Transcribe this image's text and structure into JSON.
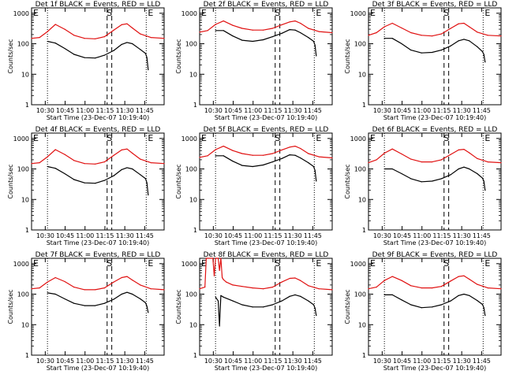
{
  "colors": {
    "events": "#000000",
    "lld": "#e01010",
    "background": "#ffffff"
  },
  "shared": {
    "xlabel": "Start Time (23-Dec-07 10:19:40)",
    "ylabel": "Counts/sec",
    "xtick_labels": [
      "10:30",
      "10:45",
      "11:00",
      "11:15",
      "11:30",
      "11:45"
    ],
    "xtick_minutes": [
      10.33,
      25.33,
      40.33,
      55.33,
      70.33,
      85.33
    ],
    "ytick_labels": [
      "1",
      "10",
      "100",
      "1000"
    ],
    "ytick_values": [
      1,
      10,
      100,
      1000
    ],
    "markers": {
      "start": "E",
      "s": "S",
      "end": "E"
    }
  },
  "chart_data": [
    {
      "type": "line",
      "title": "Det 1f BLACK = Events, RED = LLD",
      "xlabel": "Start Time (23-Dec-07 10:19:40)",
      "ylabel": "Counts/sec",
      "xlim": [
        0,
        100
      ],
      "ylim": [
        1,
        1500
      ],
      "yscale": "log",
      "grid": false,
      "dotted_lines_min": [
        12.0,
        86.5
      ],
      "dashed_lines_min": [
        57.0,
        60.5
      ],
      "series": [
        {
          "name": "Events",
          "x": [
            12,
            18,
            25,
            32,
            40,
            48,
            55,
            62,
            68,
            72,
            76,
            82,
            86,
            87,
            88
          ],
          "y": [
            120,
            105,
            70,
            45,
            35,
            34,
            42,
            60,
            95,
            110,
            100,
            65,
            48,
            35,
            14
          ]
        },
        {
          "name": "LLD",
          "x": [
            0,
            6,
            12,
            18,
            25,
            32,
            40,
            48,
            55,
            62,
            68,
            72,
            76,
            82,
            90,
            100
          ],
          "y": [
            150,
            160,
            250,
            430,
            300,
            190,
            150,
            145,
            170,
            280,
            420,
            450,
            330,
            210,
            160,
            150
          ]
        }
      ]
    },
    {
      "type": "line",
      "title": "Det 2f BLACK = Events, RED = LLD",
      "xlabel": "Start Time (23-Dec-07 10:19:40)",
      "ylabel": "Counts/sec",
      "xlim": [
        0,
        100
      ],
      "ylim": [
        1,
        1500
      ],
      "yscale": "log",
      "grid": false,
      "dotted_lines_min": [
        12.0,
        86.5
      ],
      "dashed_lines_min": [
        57.0,
        60.5
      ],
      "series": [
        {
          "name": "Events",
          "x": [
            12,
            18,
            25,
            32,
            40,
            48,
            55,
            62,
            68,
            72,
            76,
            82,
            86,
            87,
            88
          ],
          "y": [
            270,
            270,
            180,
            130,
            120,
            135,
            170,
            220,
            290,
            280,
            230,
            160,
            120,
            90,
            40
          ]
        },
        {
          "name": "LLD",
          "x": [
            0,
            6,
            12,
            18,
            25,
            32,
            40,
            48,
            55,
            62,
            68,
            72,
            76,
            82,
            90,
            100
          ],
          "y": [
            240,
            270,
            430,
            560,
            400,
            320,
            280,
            280,
            320,
            420,
            520,
            560,
            470,
            320,
            250,
            230
          ]
        }
      ]
    },
    {
      "type": "line",
      "title": "Det 3f BLACK = Events, RED = LLD",
      "xlabel": "Start Time (23-Dec-07 10:19:40)",
      "ylabel": "Counts/sec",
      "xlim": [
        0,
        100
      ],
      "ylim": [
        1,
        1500
      ],
      "yscale": "log",
      "grid": false,
      "dotted_lines_min": [
        12.0,
        86.5
      ],
      "dashed_lines_min": [
        57.0,
        60.5
      ],
      "series": [
        {
          "name": "Events",
          "x": [
            12,
            18,
            25,
            32,
            40,
            48,
            55,
            62,
            68,
            72,
            76,
            82,
            86,
            87,
            88
          ],
          "y": [
            150,
            150,
            100,
            62,
            50,
            52,
            62,
            85,
            125,
            140,
            125,
            80,
            55,
            45,
            25
          ]
        },
        {
          "name": "LLD",
          "x": [
            0,
            6,
            12,
            18,
            25,
            32,
            40,
            48,
            55,
            62,
            68,
            72,
            76,
            82,
            90,
            100
          ],
          "y": [
            190,
            230,
            360,
            470,
            330,
            230,
            190,
            180,
            210,
            320,
            450,
            470,
            360,
            240,
            190,
            180
          ]
        }
      ]
    },
    {
      "type": "line",
      "title": "Det 4f BLACK = Events, RED = LLD",
      "xlabel": "Start Time (23-Dec-07 10:19:40)",
      "ylabel": "Counts/sec",
      "xlim": [
        0,
        100
      ],
      "ylim": [
        1,
        1500
      ],
      "yscale": "log",
      "grid": false,
      "dotted_lines_min": [
        12.0,
        86.5
      ],
      "dashed_lines_min": [
        57.0,
        60.5
      ],
      "series": [
        {
          "name": "Events",
          "x": [
            12,
            18,
            25,
            32,
            40,
            48,
            55,
            62,
            68,
            72,
            76,
            82,
            86,
            87,
            88
          ],
          "y": [
            120,
            105,
            70,
            45,
            35,
            34,
            42,
            60,
            95,
            110,
            100,
            65,
            48,
            35,
            14
          ]
        },
        {
          "name": "LLD",
          "x": [
            0,
            6,
            12,
            18,
            25,
            32,
            40,
            48,
            55,
            62,
            68,
            72,
            76,
            82,
            90,
            100
          ],
          "y": [
            150,
            160,
            250,
            430,
            300,
            190,
            150,
            145,
            170,
            280,
            420,
            450,
            330,
            210,
            160,
            150
          ]
        }
      ]
    },
    {
      "type": "line",
      "title": "Det 5f BLACK = Events, RED = LLD",
      "xlabel": "Start Time (23-Dec-07 10:19:40)",
      "ylabel": "Counts/sec",
      "xlim": [
        0,
        100
      ],
      "ylim": [
        1,
        1500
      ],
      "yscale": "log",
      "grid": false,
      "dotted_lines_min": [
        12.0,
        86.5
      ],
      "dashed_lines_min": [
        57.0,
        60.5
      ],
      "series": [
        {
          "name": "Events",
          "x": [
            12,
            18,
            25,
            32,
            40,
            48,
            55,
            62,
            68,
            72,
            76,
            82,
            86,
            87,
            88
          ],
          "y": [
            270,
            270,
            180,
            130,
            120,
            135,
            170,
            220,
            290,
            280,
            230,
            160,
            120,
            90,
            40
          ]
        },
        {
          "name": "LLD",
          "x": [
            0,
            6,
            12,
            18,
            25,
            32,
            40,
            48,
            55,
            62,
            68,
            72,
            76,
            82,
            90,
            100
          ],
          "y": [
            240,
            270,
            430,
            560,
            400,
            320,
            280,
            280,
            320,
            420,
            520,
            560,
            470,
            320,
            250,
            230
          ]
        }
      ]
    },
    {
      "type": "line",
      "title": "Det 6f BLACK = Events, RED = LLD",
      "xlabel": "Start Time (23-Dec-07 10:19:40)",
      "ylabel": "Counts/sec",
      "xlim": [
        0,
        100
      ],
      "ylim": [
        1,
        1500
      ],
      "yscale": "log",
      "grid": false,
      "dotted_lines_min": [
        12.0,
        86.5
      ],
      "dashed_lines_min": [
        57.0,
        60.5
      ],
      "series": [
        {
          "name": "Events",
          "x": [
            12,
            18,
            25,
            32,
            40,
            48,
            55,
            62,
            68,
            72,
            76,
            82,
            86,
            87,
            88
          ],
          "y": [
            100,
            100,
            70,
            48,
            38,
            40,
            48,
            65,
            100,
            115,
            100,
            70,
            50,
            40,
            20
          ]
        },
        {
          "name": "LLD",
          "x": [
            0,
            6,
            12,
            18,
            25,
            32,
            40,
            48,
            55,
            62,
            68,
            72,
            76,
            82,
            90,
            100
          ],
          "y": [
            160,
            200,
            330,
            450,
            310,
            210,
            170,
            170,
            200,
            300,
            420,
            440,
            340,
            220,
            170,
            160
          ]
        }
      ]
    },
    {
      "type": "line",
      "title": "Det 7f BLACK = Events, RED = LLD",
      "xlabel": "Start Time (23-Dec-07 10:19:40)",
      "ylabel": "Counts/sec",
      "xlim": [
        0,
        100
      ],
      "ylim": [
        1,
        1500
      ],
      "yscale": "log",
      "grid": false,
      "dotted_lines_min": [
        12.0,
        86.5
      ],
      "dashed_lines_min": [
        57.0,
        60.5
      ],
      "series": [
        {
          "name": "Events",
          "x": [
            12,
            18,
            25,
            32,
            40,
            48,
            55,
            62,
            68,
            72,
            76,
            82,
            86,
            87,
            88
          ],
          "y": [
            110,
            100,
            70,
            50,
            42,
            42,
            50,
            68,
            100,
            115,
            100,
            70,
            52,
            40,
            25
          ]
        },
        {
          "name": "LLD",
          "x": [
            0,
            6,
            12,
            18,
            25,
            32,
            40,
            48,
            55,
            62,
            68,
            72,
            76,
            82,
            90,
            100
          ],
          "y": [
            150,
            160,
            250,
            350,
            260,
            170,
            140,
            140,
            160,
            250,
            350,
            380,
            290,
            200,
            150,
            140
          ]
        }
      ]
    },
    {
      "type": "line",
      "title": "Det 8f BLACK = Events, RED = LLD",
      "xlabel": "Start Time (23-Dec-07 10:19:40)",
      "ylabel": "Counts/sec",
      "xlim": [
        0,
        100
      ],
      "ylim": [
        1,
        1500
      ],
      "yscale": "log",
      "grid": false,
      "dotted_lines_min": [
        12.0,
        86.5
      ],
      "dashed_lines_min": [
        57.0,
        60.5
      ],
      "series": [
        {
          "name": "Events",
          "x": [
            12,
            14,
            15,
            16,
            18,
            25,
            32,
            40,
            48,
            55,
            62,
            68,
            72,
            76,
            82,
            86,
            87,
            88
          ],
          "y": [
            80,
            60,
            9,
            90,
            80,
            60,
            45,
            38,
            38,
            45,
            60,
            85,
            95,
            85,
            60,
            45,
            35,
            20
          ]
        },
        {
          "name": "LLD",
          "x": [
            0,
            4,
            5,
            6,
            10,
            11,
            12,
            13,
            14,
            15,
            16,
            17,
            18,
            20,
            25,
            32,
            40,
            48,
            55,
            62,
            68,
            72,
            76,
            82,
            90,
            100
          ],
          "y": [
            150,
            170,
            1500,
            1500,
            1500,
            400,
            1500,
            1500,
            1500,
            600,
            1500,
            350,
            300,
            250,
            200,
            180,
            160,
            150,
            170,
            250,
            330,
            340,
            280,
            190,
            150,
            140
          ]
        }
      ]
    },
    {
      "type": "line",
      "title": "Det 9f BLACK = Events, RED = LLD",
      "xlabel": "Start Time (23-Dec-07 10:19:40)",
      "ylabel": "Counts/sec",
      "xlim": [
        0,
        100
      ],
      "ylim": [
        1,
        1500
      ],
      "yscale": "log",
      "grid": false,
      "dotted_lines_min": [
        12.0,
        86.5
      ],
      "dashed_lines_min": [
        57.0,
        60.5
      ],
      "series": [
        {
          "name": "Events",
          "x": [
            12,
            18,
            25,
            32,
            40,
            48,
            55,
            62,
            68,
            72,
            76,
            82,
            86,
            87,
            88
          ],
          "y": [
            95,
            95,
            65,
            45,
            36,
            38,
            45,
            60,
            90,
            100,
            90,
            62,
            46,
            36,
            20
          ]
        },
        {
          "name": "LLD",
          "x": [
            0,
            6,
            12,
            18,
            25,
            32,
            40,
            48,
            55,
            62,
            68,
            72,
            76,
            82,
            90,
            100
          ],
          "y": [
            150,
            170,
            280,
            380,
            280,
            190,
            160,
            160,
            180,
            270,
            380,
            400,
            310,
            210,
            160,
            150
          ]
        }
      ]
    }
  ]
}
